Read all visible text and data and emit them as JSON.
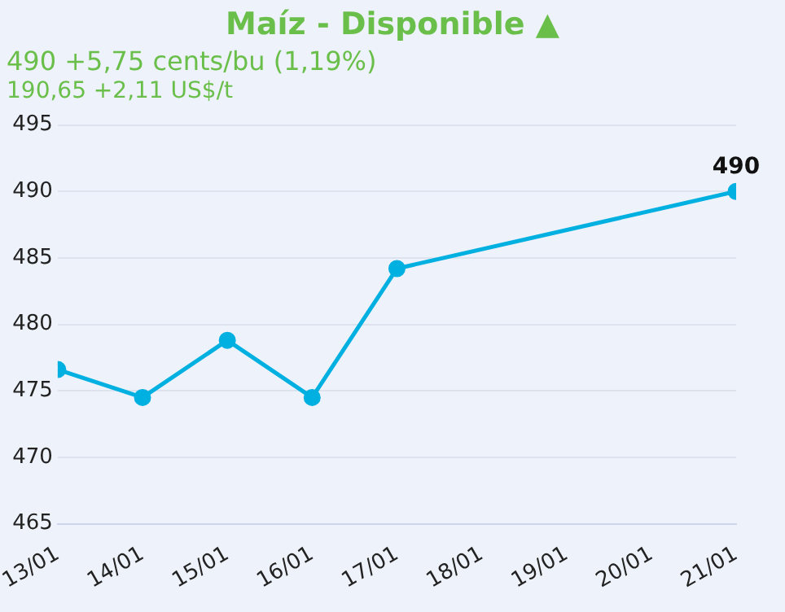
{
  "chart_data": {
    "type": "line",
    "title": "Maíz - Disponible ▲",
    "subtitle": "490 +5,75 cents/bu (1,19%)",
    "annotations": [
      "190,65 +2,11 US$/t"
    ],
    "x": [
      "--01-13",
      "--01-14",
      "--01-15",
      "--01-16",
      "--01-17",
      "--01-21"
    ],
    "series": [
      {
        "color": "#00b0e0",
        "values": [
          476.6,
          474.5,
          478.8,
          474.5,
          484.2,
          490
        ],
        "value_labels": [
          null,
          null,
          null,
          null,
          null,
          "490"
        ]
      }
    ],
    "xlim": [
      "--01-13",
      "--01-21"
    ],
    "xticks": [
      {
        "value": "--01-13",
        "label": "13/01"
      },
      {
        "value": "--01-14",
        "label": "14/01"
      },
      {
        "value": "--01-15",
        "label": "15/01"
      },
      {
        "value": "--01-16",
        "label": "16/01"
      },
      {
        "value": "--01-17",
        "label": "17/01"
      },
      {
        "value": "--01-18",
        "label": "18/01"
      },
      {
        "value": "--01-19",
        "label": "19/01"
      },
      {
        "value": "--01-20",
        "label": "20/01"
      },
      {
        "value": "--01-21",
        "label": "21/01"
      }
    ],
    "ylim": [
      465,
      495
    ],
    "yticks": [
      465,
      470,
      475,
      480,
      485,
      490,
      495
    ],
    "grid": "y",
    "legend": false,
    "marker": "circle",
    "line_style": "solid"
  }
}
